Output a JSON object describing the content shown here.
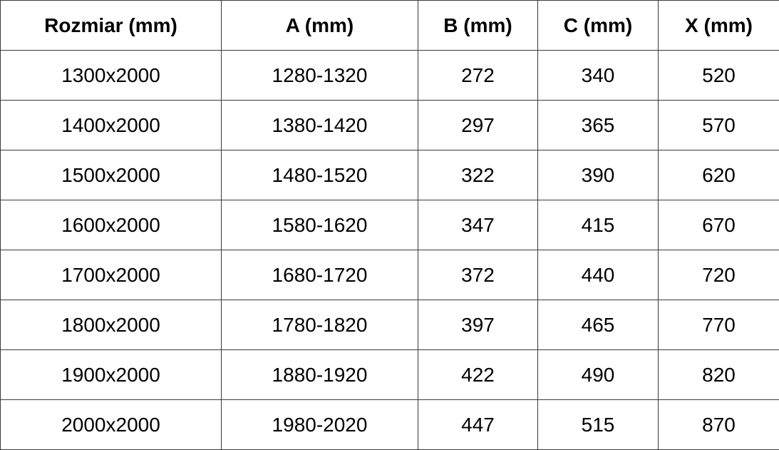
{
  "table": {
    "header": [
      "Rozmiar (mm)",
      "A (mm)",
      "B (mm)",
      "C (mm)",
      "X (mm)"
    ],
    "rows": [
      [
        "1300x2000",
        "1280-1320",
        "272",
        "340",
        "520"
      ],
      [
        "1400x2000",
        "1380-1420",
        "297",
        "365",
        "570"
      ],
      [
        "1500x2000",
        "1480-1520",
        "322",
        "390",
        "620"
      ],
      [
        "1600x2000",
        "1580-1620",
        "347",
        "415",
        "670"
      ],
      [
        "1700x2000",
        "1680-1720",
        "372",
        "440",
        "720"
      ],
      [
        "1800x2000",
        "1780-1820",
        "397",
        "465",
        "770"
      ],
      [
        "1900x2000",
        "1880-1920",
        "422",
        "490",
        "820"
      ],
      [
        "2000x2000",
        "1980-2020",
        "447",
        "515",
        "870"
      ]
    ]
  }
}
